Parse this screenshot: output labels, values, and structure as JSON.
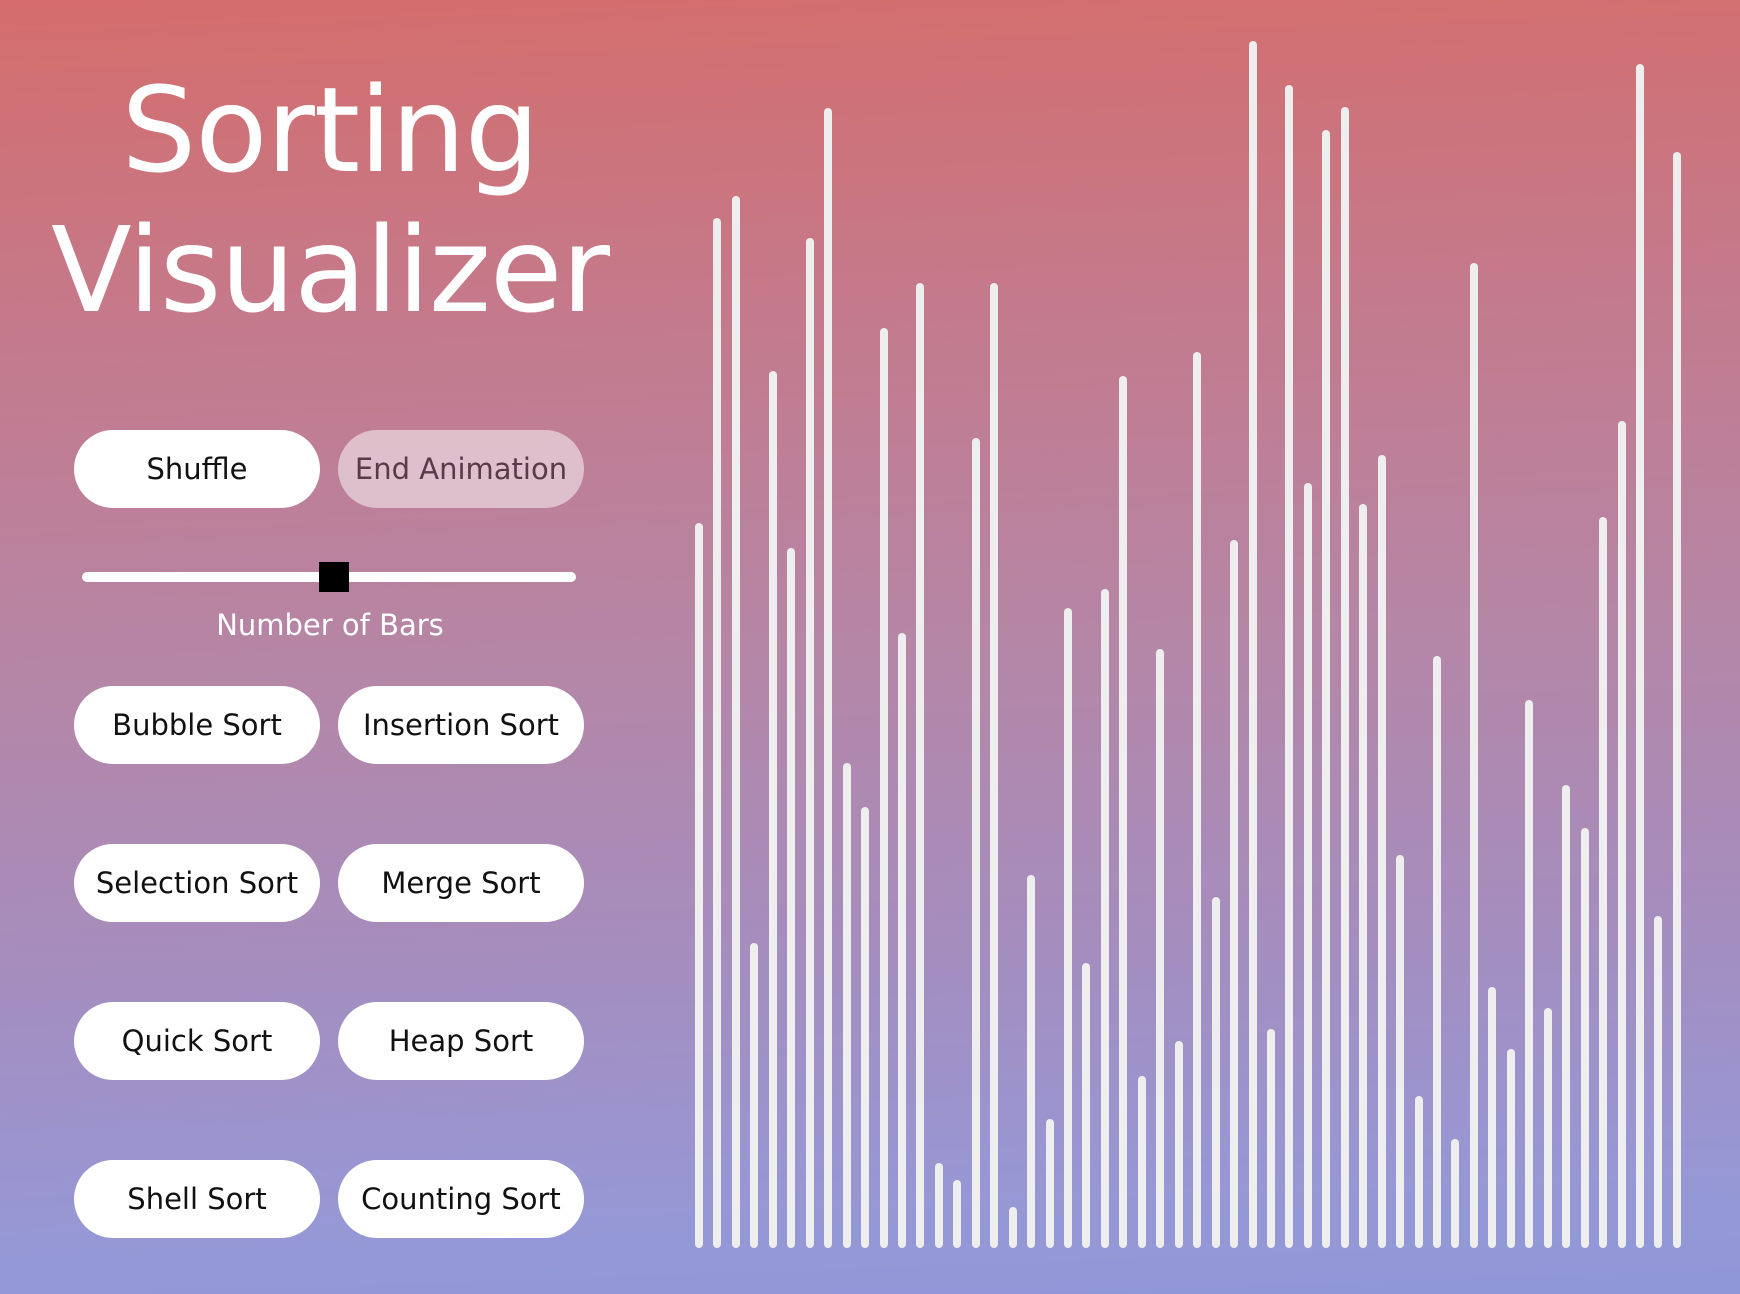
{
  "title": {
    "line1": "Sorting",
    "line2": "Visualizer"
  },
  "controls": {
    "shuffle_label": "Shuffle",
    "end_animation_label": "End Animation",
    "slider_label": "Number of Bars",
    "slider_value_fraction": 0.51
  },
  "sorts": {
    "bubble": "Bubble Sort",
    "insertion": "Insertion Sort",
    "selection": "Selection Sort",
    "merge": "Merge Sort",
    "quick": "Quick Sort",
    "heap": "Heap Sort",
    "shell": "Shell Sort",
    "counting": "Counting Sort"
  },
  "bars": {
    "color": "#eeeeee",
    "max_value": 1210,
    "values": [
      725,
      1030,
      1052,
      305,
      877,
      700,
      1010,
      1140,
      485,
      441,
      920,
      615,
      965,
      85,
      68,
      810,
      965,
      41,
      373,
      129,
      640,
      285,
      659,
      872,
      172,
      599,
      207,
      896,
      351,
      708,
      1207,
      219,
      1163,
      765,
      1118,
      1141,
      744,
      793,
      393,
      152,
      592,
      109,
      985,
      261,
      199,
      548,
      240,
      463,
      420,
      731,
      827,
      1184,
      332,
      1096
    ]
  }
}
